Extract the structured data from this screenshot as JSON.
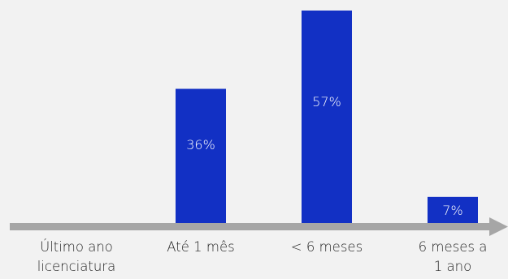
{
  "chart_data": {
    "type": "bar",
    "categories": [
      [
        "Último ano",
        "licenciatura"
      ],
      [
        "Até 1 mês"
      ],
      [
        "< 6 meses"
      ],
      [
        "6 meses a",
        "1 ano"
      ]
    ],
    "values": [
      0,
      36,
      57,
      7
    ],
    "data_labels": [
      "",
      "36%",
      "57%",
      "7%"
    ],
    "unit": "%",
    "title": "",
    "xlabel": "",
    "ylabel": "",
    "ylim": [
      0,
      57
    ],
    "grid": false,
    "legend": "none",
    "colors": {
      "bar": "#1230c4",
      "axis_arrow": "#a6a6a6",
      "background": "#f2f2f2",
      "label_text": "#262626",
      "bar_label_text": "#ffffff"
    }
  }
}
